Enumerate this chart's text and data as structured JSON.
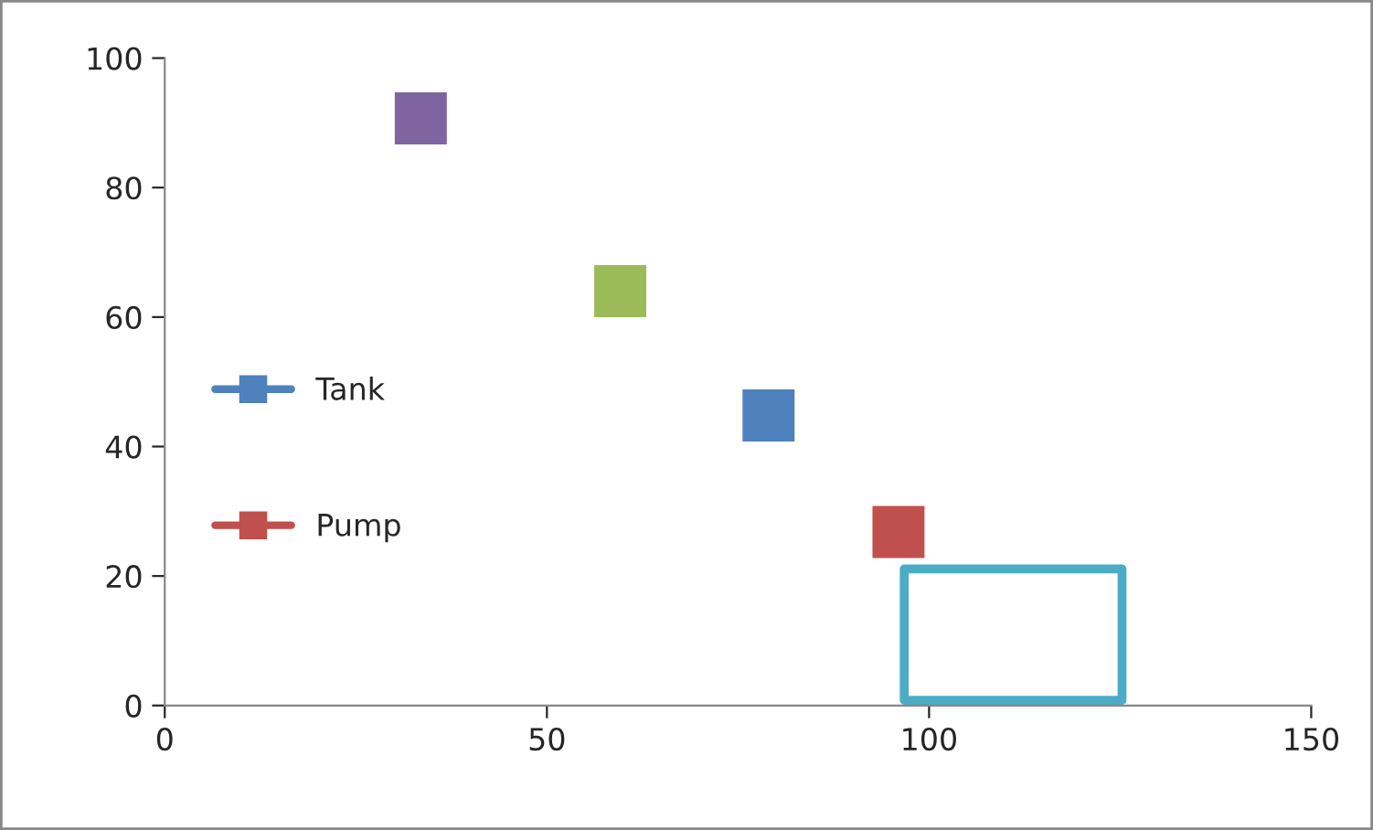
{
  "chart_data": {
    "type": "scatter",
    "xlim": [
      0,
      150
    ],
    "xticks": [
      0,
      50,
      100,
      150
    ],
    "ylim": [
      0,
      100
    ],
    "yticks": [
      0,
      20,
      40,
      60,
      80,
      100
    ],
    "grid": false,
    "legend": "left",
    "marker": "square",
    "series": [
      {
        "name": "Tank",
        "color": "#4f81bd",
        "x": [
          79
        ],
        "values": [
          44.8
        ]
      },
      {
        "name": "Pump",
        "color": "#c0504d",
        "x": [
          96
        ],
        "values": [
          26.8
        ]
      },
      {
        "color": "#8064a2",
        "x": [
          33.5
        ],
        "values": [
          90.7
        ]
      },
      {
        "color": "#9bbb59",
        "x": [
          59.6
        ],
        "values": [
          64
        ]
      }
    ]
  }
}
